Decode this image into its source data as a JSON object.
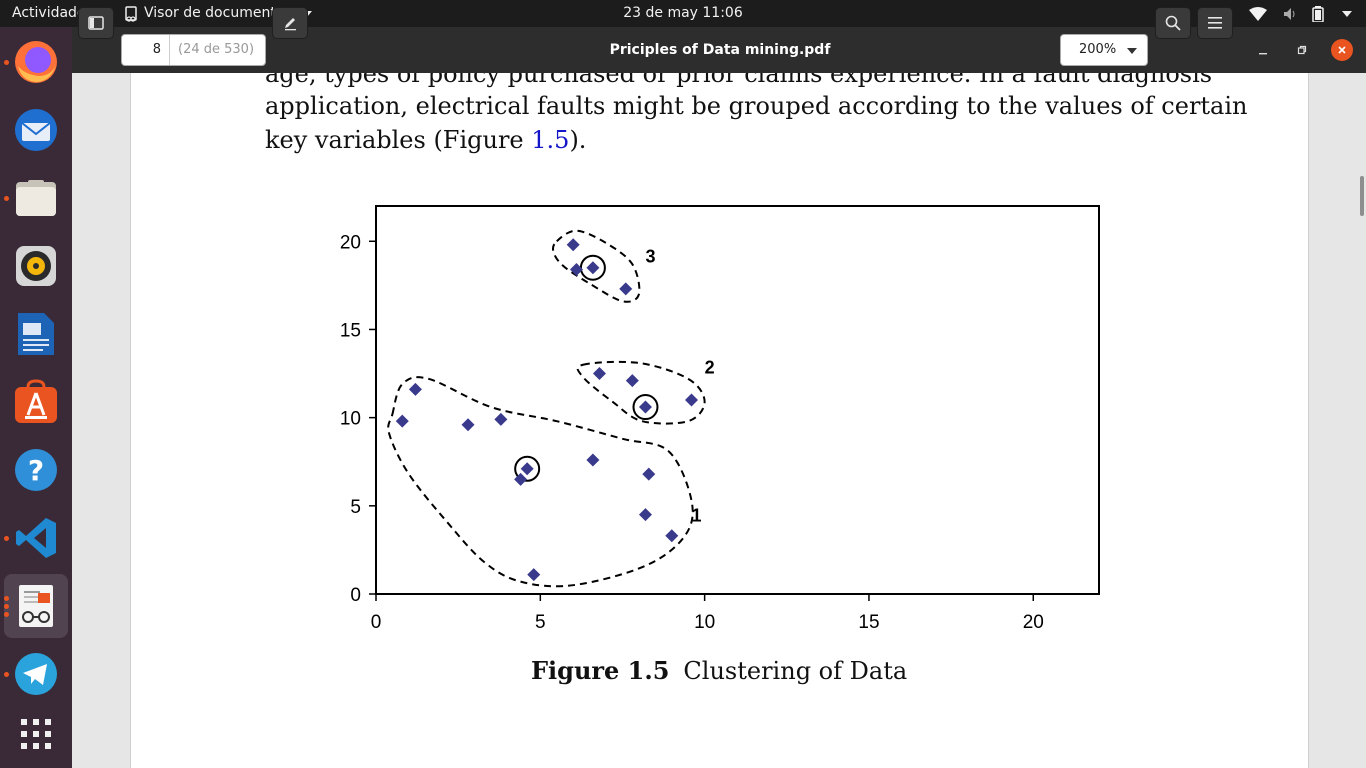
{
  "topbar": {
    "activities": "Actividades",
    "app_name": "Visor de documentos",
    "datetime": "23 de may  11:06",
    "tray_icons": [
      "telegram-tray-icon",
      "wifi-icon",
      "volume-icon",
      "battery-icon",
      "system-menu-caret"
    ]
  },
  "dock": {
    "items": [
      {
        "name": "firefox",
        "running": true
      },
      {
        "name": "thunderbird",
        "running": false
      },
      {
        "name": "files",
        "running": true
      },
      {
        "name": "rhythmbox",
        "running": false
      },
      {
        "name": "libreoffice-writer",
        "running": false
      },
      {
        "name": "ubuntu-software",
        "running": false
      },
      {
        "name": "help",
        "running": false
      },
      {
        "name": "vscode",
        "running": true
      },
      {
        "name": "document-viewer",
        "running": true
      },
      {
        "name": "telegram",
        "running": true
      },
      {
        "name": "show-applications",
        "running": false
      }
    ]
  },
  "header": {
    "page_current": "8",
    "page_total": "(24 de 530)",
    "title": "Priciples of Data mining.pdf",
    "zoom": "200%"
  },
  "document": {
    "line0": "age, types of policy purchased or prior claims experience. In a fault diagnosis",
    "line1": "application, electrical faults might be grouped according to the values of certain",
    "line2_pre": "key variables (Figure ",
    "line2_link": "1.5",
    "line2_post": ").",
    "figure_label": "Figure 1.5",
    "figure_title": "Clustering of Data"
  },
  "chart_data": {
    "type": "scatter",
    "xlim": [
      0,
      22
    ],
    "ylim": [
      0,
      22
    ],
    "xticks": [
      "0",
      "5",
      "10",
      "15",
      "20"
    ],
    "yticks": [
      "0",
      "5",
      "10",
      "15",
      "20"
    ],
    "points": [
      {
        "x": 0.8,
        "y": 9.8
      },
      {
        "x": 1.2,
        "y": 11.6
      },
      {
        "x": 2.8,
        "y": 9.6
      },
      {
        "x": 3.8,
        "y": 9.9
      },
      {
        "x": 4.4,
        "y": 6.5
      },
      {
        "x": 4.6,
        "y": 7.1
      },
      {
        "x": 4.8,
        "y": 1.1
      },
      {
        "x": 6.6,
        "y": 7.6
      },
      {
        "x": 8.3,
        "y": 6.8
      },
      {
        "x": 8.2,
        "y": 4.5
      },
      {
        "x": 9.0,
        "y": 3.3
      },
      {
        "x": 6.8,
        "y": 12.5
      },
      {
        "x": 7.8,
        "y": 12.1
      },
      {
        "x": 8.2,
        "y": 10.6
      },
      {
        "x": 9.6,
        "y": 11.0
      },
      {
        "x": 6.0,
        "y": 19.8
      },
      {
        "x": 6.1,
        "y": 18.4
      },
      {
        "x": 6.6,
        "y": 18.5
      },
      {
        "x": 7.6,
        "y": 17.3
      }
    ],
    "centroids": [
      {
        "x": 4.6,
        "y": 7.1
      },
      {
        "x": 8.2,
        "y": 10.6
      },
      {
        "x": 6.6,
        "y": 18.5
      }
    ],
    "clusters": [
      {
        "label": "1",
        "label_x": 9.6,
        "label_y": 4.1,
        "outline": [
          [
            0.5,
            10.2
          ],
          [
            0.8,
            11.9
          ],
          [
            1.6,
            12.2
          ],
          [
            3.5,
            10.6
          ],
          [
            5.5,
            9.8
          ],
          [
            7.5,
            8.8
          ],
          [
            8.9,
            8.1
          ],
          [
            9.6,
            5.3
          ],
          [
            9.4,
            3.3
          ],
          [
            8.2,
            1.6
          ],
          [
            6.0,
            0.5
          ],
          [
            4.4,
            0.7
          ],
          [
            3.3,
            1.8
          ],
          [
            2.2,
            4.0
          ],
          [
            1.0,
            6.8
          ],
          [
            0.4,
            9.1
          ]
        ]
      },
      {
        "label": "2",
        "label_x": 10.0,
        "label_y": 12.5,
        "outline": [
          [
            6.3,
            13.0
          ],
          [
            8.0,
            13.1
          ],
          [
            9.5,
            12.2
          ],
          [
            10.0,
            10.9
          ],
          [
            9.5,
            9.8
          ],
          [
            8.1,
            9.8
          ],
          [
            7.2,
            10.9
          ],
          [
            6.3,
            12.3
          ]
        ]
      },
      {
        "label": "3",
        "label_x": 8.2,
        "label_y": 18.8,
        "outline": [
          [
            5.5,
            20.0
          ],
          [
            6.1,
            20.6
          ],
          [
            7.0,
            19.9
          ],
          [
            7.8,
            18.7
          ],
          [
            8.0,
            17.0
          ],
          [
            7.5,
            16.6
          ],
          [
            6.5,
            17.6
          ],
          [
            5.7,
            18.6
          ],
          [
            5.4,
            19.4
          ]
        ]
      }
    ]
  },
  "colors": {
    "marker": "#3a3a8c",
    "topbar_bg": "#1c1c1c",
    "dock_bg": "#3a2a37",
    "header_bg": "#2d2d2d",
    "close_button": "#e95420"
  }
}
